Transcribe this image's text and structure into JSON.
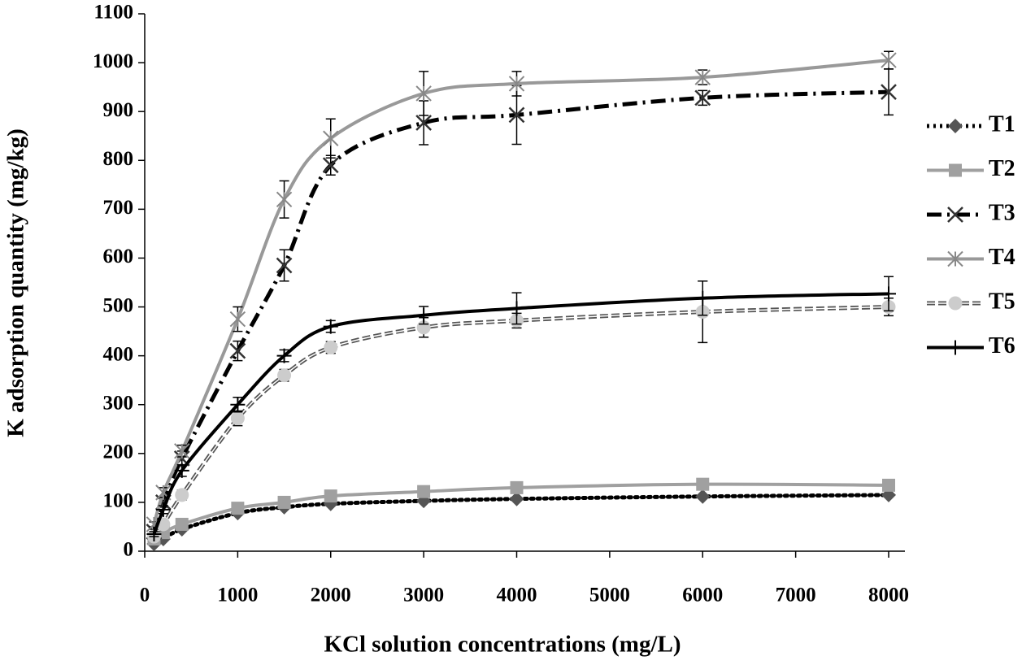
{
  "chart_data": {
    "type": "line",
    "x_label": "KCl solution concentrations (mg/L)",
    "y_label": "K adsorption quantity (mg/kg)",
    "x": [
      100,
      200,
      400,
      1000,
      1500,
      2000,
      3000,
      4000,
      6000,
      8000
    ],
    "xlim": [
      0,
      8000
    ],
    "xticks": [
      0,
      1000,
      2000,
      3000,
      4000,
      5000,
      6000,
      7000,
      8000
    ],
    "ylim": [
      0,
      1100
    ],
    "yticks": [
      0,
      100,
      200,
      300,
      400,
      500,
      600,
      700,
      800,
      900,
      1000,
      1100
    ],
    "legend": "right",
    "series": [
      {
        "name": "T1",
        "color": "#000000",
        "marker_color": "#555555",
        "marker": "diamond",
        "line_style": "dotted",
        "values": [
          15,
          25,
          45,
          78,
          90,
          97,
          103,
          107,
          112,
          115
        ]
      },
      {
        "name": "T2",
        "color": "#a0a0a0",
        "marker_color": "#a0a0a0",
        "marker": "square",
        "line_style": "solid",
        "values": [
          25,
          38,
          55,
          88,
          100,
          113,
          122,
          130,
          137,
          135
        ]
      },
      {
        "name": "T3",
        "color": "#000000",
        "marker_color": "#333333",
        "marker": "x",
        "line_style": "dashdot",
        "values": [
          40,
          100,
          190,
          410,
          585,
          790,
          877,
          893,
          928,
          940
        ],
        "errors": [
          5,
          10,
          15,
          20,
          32,
          20,
          45,
          60,
          15,
          47
        ]
      },
      {
        "name": "T4",
        "color": "#999999",
        "marker_color": "#888888",
        "marker": "star",
        "line_style": "solid",
        "values": [
          55,
          120,
          205,
          475,
          720,
          845,
          937,
          957,
          970,
          1005
        ],
        "errors": [
          5,
          10,
          12,
          25,
          38,
          40,
          45,
          25,
          15,
          18
        ]
      },
      {
        "name": "T5",
        "color": "#555555",
        "marker_color": "#cccccc",
        "marker": "circle",
        "line_style": "double",
        "values": [
          30,
          55,
          115,
          272,
          360,
          417,
          458,
          472,
          490,
          500
        ],
        "errors": [
          5,
          8,
          10,
          15,
          12,
          12,
          20,
          15,
          63,
          18
        ]
      },
      {
        "name": "T6",
        "color": "#000000",
        "marker_color": "#000000",
        "marker": "plus",
        "line_style": "solid",
        "values": [
          35,
          85,
          165,
          300,
          400,
          460,
          483,
          497,
          518,
          527
        ],
        "errors": [
          5,
          8,
          12,
          15,
          12,
          12,
          18,
          32,
          35,
          35
        ]
      }
    ]
  }
}
